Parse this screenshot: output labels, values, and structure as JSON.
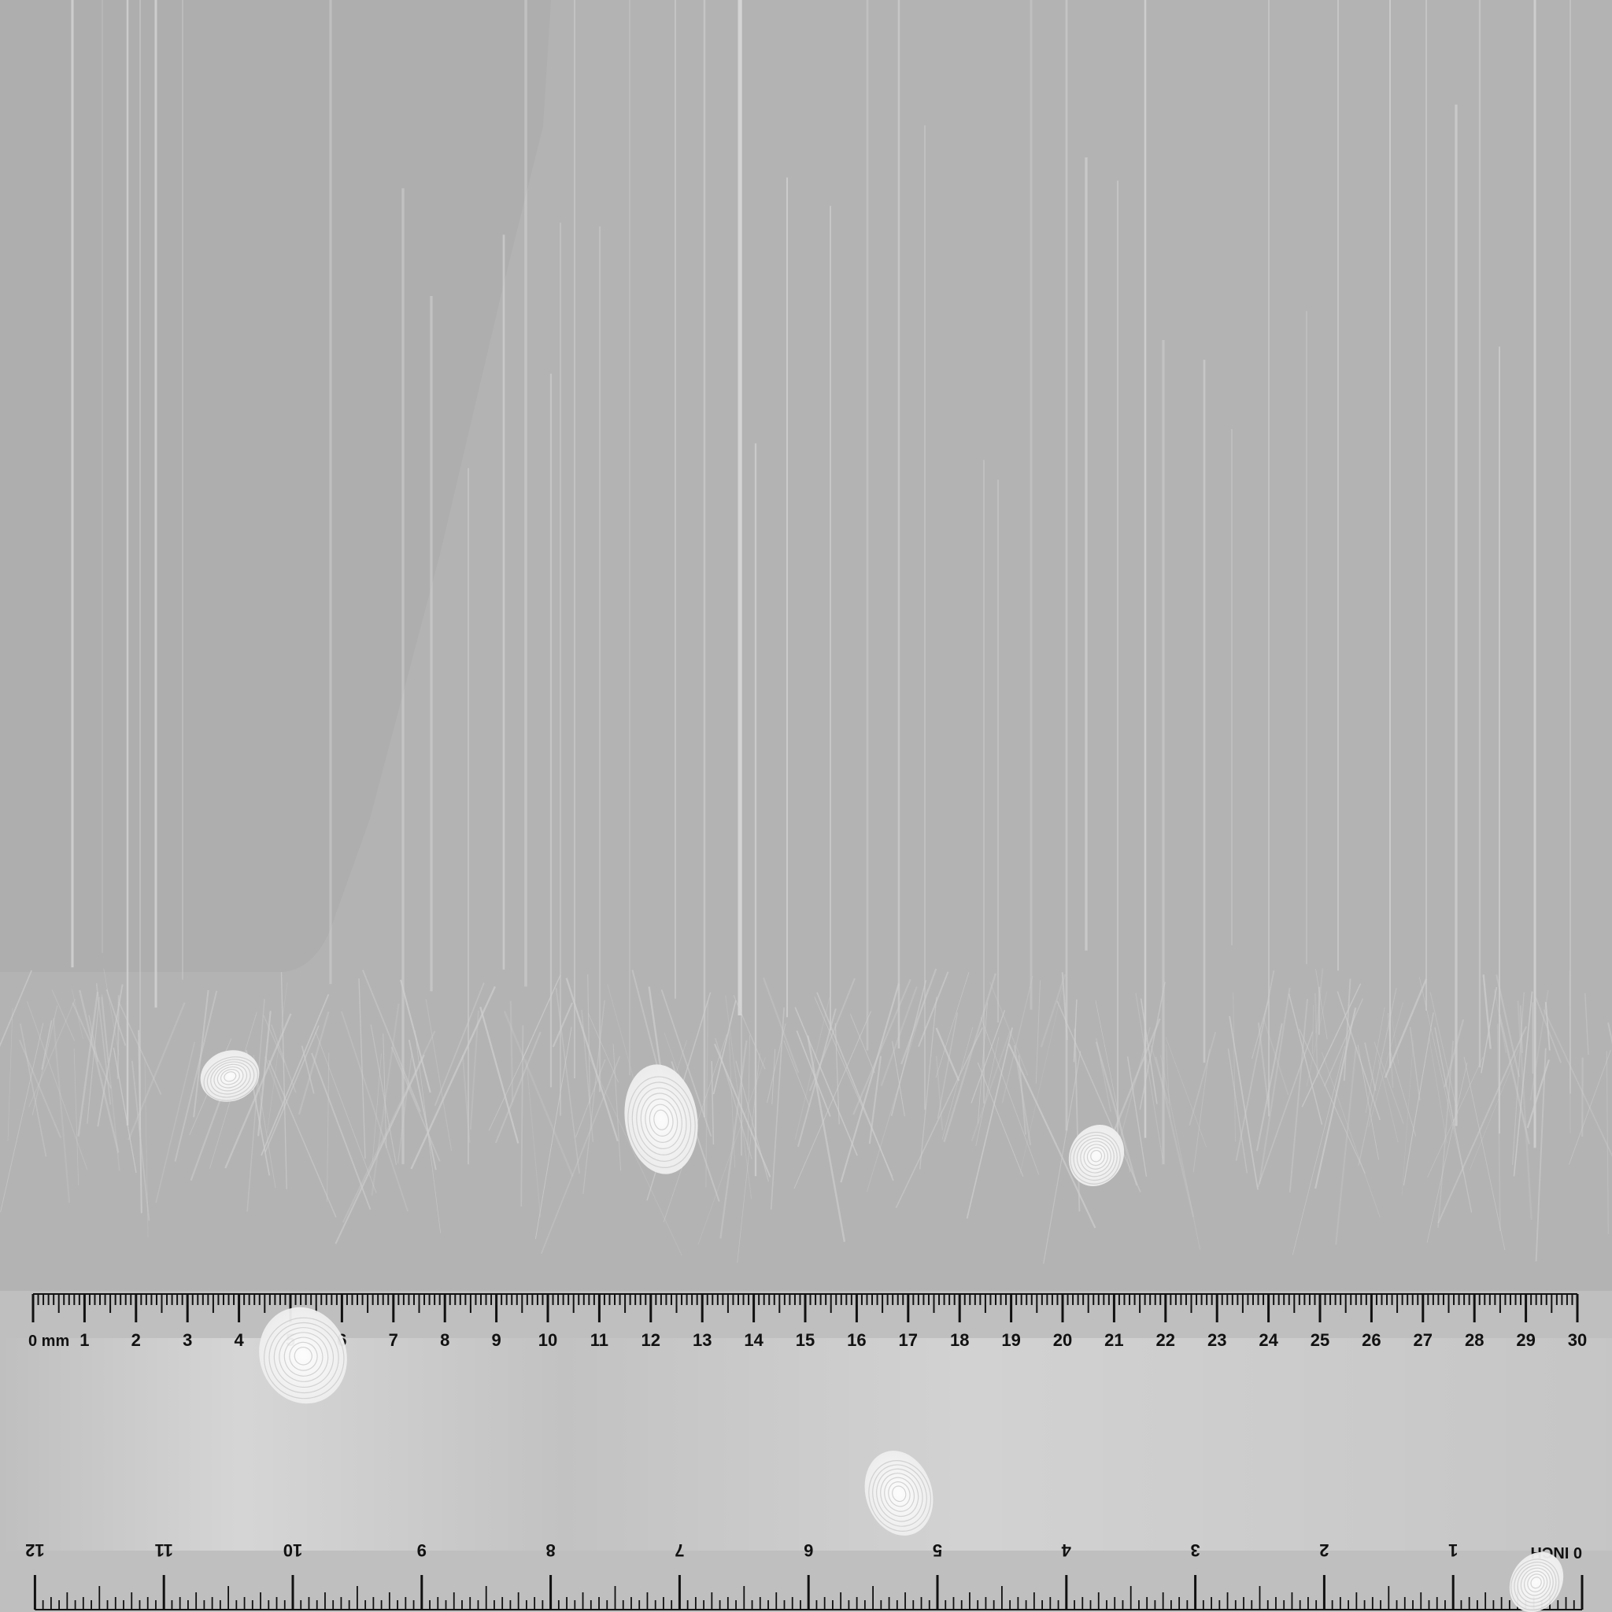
{
  "background": {
    "base_color": "#b3b3b3",
    "scratch_color": "#d6d6d6",
    "fingerprint_color": "#f2f2f2",
    "fingerprint_count": 6
  },
  "ruler": {
    "top_scale": {
      "unit_label": "0 mm",
      "labels": [
        "1",
        "2",
        "3",
        "4",
        "5",
        "6",
        "7",
        "8",
        "9",
        "10",
        "11",
        "12",
        "13",
        "14",
        "15",
        "16",
        "17",
        "18",
        "19",
        "20",
        "21",
        "22",
        "23",
        "24",
        "25",
        "26",
        "27",
        "28",
        "29",
        "30"
      ]
    },
    "bottom_scale": {
      "unit_label": "0 INCH",
      "labels": [
        "1",
        "2",
        "3",
        "4",
        "5",
        "6",
        "7",
        "8",
        "9",
        "10",
        "11",
        "12"
      ],
      "orientation": "upside-down"
    },
    "body_color": "#c8c8c8",
    "mark_color": "#111111"
  }
}
